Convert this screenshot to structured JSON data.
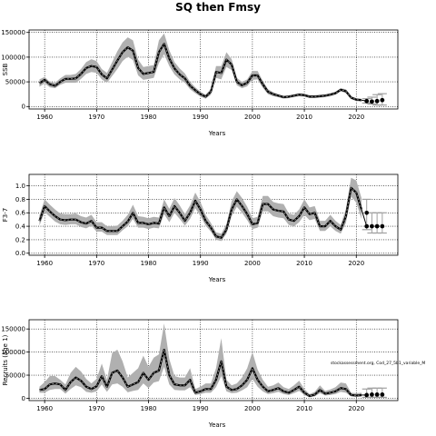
{
  "figure": {
    "title": "SQ then Fmsy",
    "watermark": "stockassessment.org, Cod_27_5b1_variable_M"
  },
  "chart_data": [
    {
      "type": "line",
      "ylabel": "SSB",
      "xlabel": "Years",
      "xlim": [
        1957,
        2028
      ],
      "ylim": [
        -5000,
        155000
      ],
      "xticks": [
        1960,
        1970,
        1980,
        1990,
        2000,
        2010,
        2020
      ],
      "yticks": [
        0,
        50000,
        100000,
        150000
      ],
      "grid": true,
      "x": [
        1959,
        1960,
        1961,
        1962,
        1963,
        1964,
        1965,
        1966,
        1967,
        1968,
        1969,
        1970,
        1971,
        1972,
        1973,
        1974,
        1975,
        1976,
        1977,
        1978,
        1979,
        1980,
        1981,
        1982,
        1983,
        1984,
        1985,
        1986,
        1987,
        1988,
        1989,
        1990,
        1991,
        1992,
        1993,
        1994,
        1995,
        1996,
        1997,
        1998,
        1999,
        2000,
        2001,
        2002,
        2003,
        2004,
        2005,
        2006,
        2007,
        2008,
        2009,
        2010,
        2011,
        2012,
        2013,
        2014,
        2015,
        2016,
        2017,
        2018,
        2019,
        2020,
        2021
      ],
      "y": [
        47000,
        54000,
        45000,
        42000,
        50000,
        56000,
        56000,
        57000,
        66000,
        78000,
        82000,
        80000,
        65000,
        57000,
        75000,
        93000,
        110000,
        120000,
        113000,
        78000,
        66000,
        68000,
        70000,
        110000,
        127000,
        97000,
        77000,
        65000,
        57000,
        42000,
        33000,
        25000,
        20000,
        30000,
        70000,
        68000,
        95000,
        85000,
        50000,
        43000,
        48000,
        63000,
        63000,
        45000,
        30000,
        25000,
        22000,
        19000,
        20000,
        22000,
        24000,
        23000,
        20000,
        20000,
        21000,
        22000,
        24000,
        27000,
        34000,
        31000,
        18000,
        14000,
        13000
      ],
      "upper": [
        55000,
        60000,
        50000,
        48000,
        57000,
        64000,
        64000,
        66000,
        76000,
        90000,
        96000,
        92000,
        76000,
        68000,
        90000,
        112000,
        130000,
        140000,
        134000,
        95000,
        80000,
        82000,
        84000,
        134000,
        148000,
        114000,
        90000,
        77000,
        67000,
        50000,
        39000,
        30000,
        24000,
        36000,
        82000,
        82000,
        110000,
        96000,
        58000,
        50000,
        55000,
        72000,
        72000,
        52000,
        35000,
        29000,
        25000,
        22000,
        23000,
        25000,
        27000,
        26000,
        23000,
        23000,
        24000,
        25000,
        27000,
        30000,
        37000,
        35000,
        21000,
        17000,
        16000
      ],
      "lower": [
        40000,
        47000,
        39000,
        37000,
        44000,
        48000,
        48000,
        48000,
        56000,
        66000,
        70000,
        68000,
        55000,
        48000,
        62000,
        76000,
        92000,
        101000,
        94000,
        63000,
        54000,
        56000,
        58000,
        88000,
        106000,
        82000,
        65000,
        55000,
        48000,
        35000,
        27000,
        20000,
        16000,
        24000,
        58000,
        55000,
        80000,
        74000,
        43000,
        37000,
        41000,
        54000,
        55000,
        38000,
        25000,
        21000,
        19000,
        16000,
        17000,
        19000,
        21000,
        20000,
        17000,
        17000,
        18000,
        19000,
        21000,
        24000,
        31000,
        27000,
        15000,
        11000,
        10000
      ],
      "forecast": {
        "x": [
          2022,
          2023,
          2024,
          2025
        ],
        "median": [
          11000,
          10000,
          11000,
          13000
        ],
        "upper": [
          16000,
          19000,
          24000,
          26000
        ],
        "lower": [
          7000,
          5000,
          3000,
          3000
        ]
      }
    },
    {
      "type": "line",
      "ylabel": "F3-7",
      "xlabel": "Years",
      "xlim": [
        1957,
        2028
      ],
      "ylim": [
        -0.03,
        1.17
      ],
      "xticks": [
        1960,
        1970,
        1980,
        1990,
        2000,
        2010,
        2020
      ],
      "yticks": [
        0,
        0.2,
        0.4,
        0.6,
        0.8,
        1.0
      ],
      "ytick_labels": [
        "0.0",
        "0.2",
        "0.4",
        "0.6",
        "0.8",
        "1.0"
      ],
      "grid": true,
      "x": [
        1959,
        1960,
        1961,
        1962,
        1963,
        1964,
        1965,
        1966,
        1967,
        1968,
        1969,
        1970,
        1971,
        1972,
        1973,
        1974,
        1975,
        1976,
        1977,
        1978,
        1979,
        1980,
        1981,
        1982,
        1983,
        1984,
        1985,
        1986,
        1987,
        1988,
        1989,
        1990,
        1991,
        1992,
        1993,
        1994,
        1995,
        1996,
        1997,
        1998,
        1999,
        2000,
        2001,
        2002,
        2003,
        2004,
        2005,
        2006,
        2007,
        2008,
        2009,
        2010,
        2011,
        2012,
        2013,
        2014,
        2015,
        2016,
        2017,
        2018,
        2019,
        2020,
        2021
      ],
      "y": [
        0.48,
        0.7,
        0.62,
        0.55,
        0.5,
        0.49,
        0.5,
        0.5,
        0.46,
        0.44,
        0.48,
        0.38,
        0.38,
        0.33,
        0.33,
        0.33,
        0.4,
        0.47,
        0.6,
        0.45,
        0.45,
        0.43,
        0.45,
        0.44,
        0.68,
        0.55,
        0.7,
        0.6,
        0.48,
        0.6,
        0.78,
        0.65,
        0.48,
        0.38,
        0.25,
        0.23,
        0.35,
        0.65,
        0.8,
        0.7,
        0.58,
        0.43,
        0.45,
        0.73,
        0.73,
        0.65,
        0.63,
        0.62,
        0.5,
        0.48,
        0.55,
        0.68,
        0.58,
        0.6,
        0.4,
        0.4,
        0.48,
        0.4,
        0.35,
        0.55,
        0.97,
        0.9,
        0.65
      ],
      "upper": [
        0.56,
        0.8,
        0.72,
        0.65,
        0.59,
        0.58,
        0.58,
        0.59,
        0.55,
        0.53,
        0.57,
        0.46,
        0.46,
        0.4,
        0.4,
        0.41,
        0.48,
        0.57,
        0.72,
        0.55,
        0.54,
        0.52,
        0.54,
        0.53,
        0.8,
        0.66,
        0.82,
        0.71,
        0.58,
        0.71,
        0.9,
        0.76,
        0.57,
        0.45,
        0.31,
        0.29,
        0.43,
        0.77,
        0.92,
        0.82,
        0.69,
        0.52,
        0.54,
        0.85,
        0.85,
        0.76,
        0.74,
        0.73,
        0.59,
        0.57,
        0.65,
        0.8,
        0.68,
        0.7,
        0.48,
        0.48,
        0.57,
        0.48,
        0.42,
        0.66,
        1.12,
        1.08,
        0.82
      ],
      "lower": [
        0.41,
        0.61,
        0.54,
        0.47,
        0.43,
        0.42,
        0.43,
        0.43,
        0.39,
        0.37,
        0.41,
        0.32,
        0.32,
        0.27,
        0.27,
        0.27,
        0.34,
        0.4,
        0.51,
        0.38,
        0.38,
        0.36,
        0.38,
        0.37,
        0.58,
        0.46,
        0.6,
        0.51,
        0.41,
        0.51,
        0.67,
        0.55,
        0.41,
        0.32,
        0.2,
        0.18,
        0.29,
        0.55,
        0.69,
        0.6,
        0.49,
        0.36,
        0.38,
        0.62,
        0.62,
        0.55,
        0.53,
        0.52,
        0.42,
        0.4,
        0.46,
        0.57,
        0.49,
        0.51,
        0.33,
        0.33,
        0.4,
        0.33,
        0.29,
        0.45,
        0.84,
        0.75,
        0.51
      ],
      "forecast": {
        "x": [
          2022,
          2023,
          2024,
          2025
        ],
        "median": [
          0.4,
          0.4,
          0.4,
          0.4
        ],
        "upper": [
          0.8,
          0.6,
          0.6,
          0.6
        ],
        "lower": [
          0.35,
          0.3,
          0.3,
          0.3
        ]
      }
    },
    {
      "type": "line",
      "ylabel": "Recruits (age 1)",
      "xlabel": "Years",
      "xlim": [
        1957,
        2028
      ],
      "ylim": [
        -5000,
        170000
      ],
      "xticks": [
        1960,
        1970,
        1980,
        1990,
        2000,
        2010,
        2020
      ],
      "yticks": [
        0,
        50000,
        100000,
        150000
      ],
      "grid": true,
      "x": [
        1959,
        1960,
        1961,
        1962,
        1963,
        1964,
        1965,
        1966,
        1967,
        1968,
        1969,
        1970,
        1971,
        1972,
        1973,
        1974,
        1975,
        1976,
        1977,
        1978,
        1979,
        1980,
        1981,
        1982,
        1983,
        1984,
        1985,
        1986,
        1987,
        1988,
        1989,
        1990,
        1991,
        1992,
        1993,
        1994,
        1995,
        1996,
        1997,
        1998,
        1999,
        2000,
        2001,
        2002,
        2003,
        2004,
        2005,
        2006,
        2007,
        2008,
        2009,
        2010,
        2011,
        2012,
        2013,
        2014,
        2015,
        2016,
        2017,
        2018,
        2019,
        2020,
        2021
      ],
      "y": [
        18000,
        20000,
        30000,
        32000,
        30000,
        18000,
        35000,
        45000,
        38000,
        25000,
        20000,
        26000,
        48000,
        25000,
        55000,
        60000,
        45000,
        25000,
        30000,
        35000,
        55000,
        40000,
        55000,
        60000,
        105000,
        50000,
        30000,
        28000,
        28000,
        40000,
        12000,
        15000,
        20000,
        20000,
        40000,
        80000,
        25000,
        18000,
        20000,
        28000,
        40000,
        65000,
        40000,
        25000,
        15000,
        18000,
        22000,
        15000,
        12000,
        18000,
        25000,
        12000,
        5000,
        8000,
        18000,
        10000,
        12000,
        15000,
        22000,
        20000,
        7000,
        6000,
        7000
      ],
      "upper": [
        25000,
        35000,
        48000,
        48000,
        40000,
        30000,
        55000,
        68000,
        58000,
        42000,
        32000,
        42000,
        75000,
        40000,
        98000,
        105000,
        80000,
        45000,
        55000,
        65000,
        92000,
        68000,
        88000,
        95000,
        162000,
        85000,
        48000,
        45000,
        45000,
        65000,
        20000,
        25000,
        32000,
        32000,
        65000,
        130000,
        40000,
        28000,
        32000,
        45000,
        65000,
        100000,
        62000,
        40000,
        25000,
        28000,
        34000,
        24000,
        20000,
        28000,
        38000,
        20000,
        9000,
        14000,
        28000,
        16000,
        19000,
        24000,
        34000,
        32000,
        12000,
        11000,
        12000
      ],
      "lower": [
        12000,
        12000,
        18000,
        20000,
        20000,
        10000,
        20000,
        28000,
        24000,
        14000,
        12000,
        15000,
        30000,
        14000,
        30000,
        32000,
        25000,
        13000,
        16000,
        18000,
        32000,
        22000,
        34000,
        37000,
        68000,
        30000,
        18000,
        17000,
        17000,
        24000,
        7000,
        9000,
        12000,
        12000,
        24000,
        48000,
        15000,
        11000,
        12000,
        17000,
        24000,
        42000,
        25000,
        15000,
        9000,
        11000,
        14000,
        9000,
        7000,
        11000,
        16000,
        7000,
        2000,
        4000,
        11000,
        6000,
        7000,
        9000,
        14000,
        12000,
        4000,
        3000,
        3000
      ],
      "forecast": {
        "x": [
          2022,
          2023,
          2024,
          2025
        ],
        "median": [
          7000,
          8000,
          8000,
          8000
        ],
        "upper": [
          20000,
          22000,
          22000,
          22000
        ],
        "lower": [
          2000,
          2000,
          2000,
          2000
        ]
      }
    }
  ]
}
